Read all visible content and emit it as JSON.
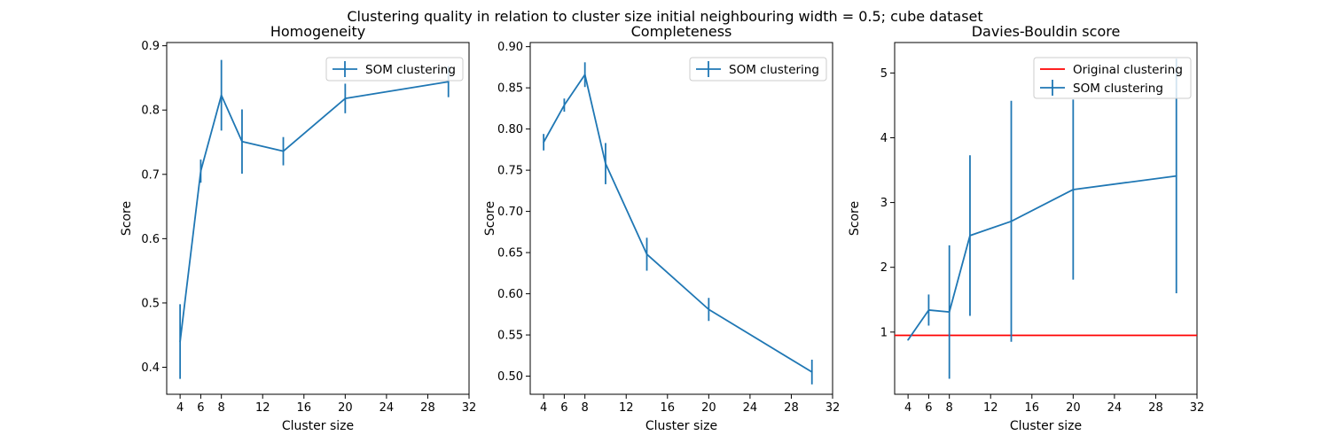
{
  "figure": {
    "title": "Clustering quality in relation to cluster size initial neighbouring width = 0.5; cube dataset"
  },
  "colors": {
    "series": "#1f77b4",
    "reference": "#ff0000",
    "axes": "#000000"
  },
  "chart_data": [
    {
      "type": "line",
      "title": "Homogeneity",
      "xlabel": "Cluster size",
      "ylabel": "Score",
      "xlim": [
        2.7,
        32.0
      ],
      "ylim": [
        0.358,
        0.905
      ],
      "xticks": [
        4,
        6,
        8,
        12,
        16,
        20,
        24,
        28,
        32
      ],
      "yticks": [
        0.4,
        0.5,
        0.6,
        0.7,
        0.8,
        0.9
      ],
      "ytick_labels": [
        "0.4",
        "0.5",
        "0.6",
        "0.7",
        "0.8",
        "0.9"
      ],
      "legend_position": "upper-right",
      "series": [
        {
          "name": "SOM clustering",
          "kind": "errorbar",
          "x": [
            4,
            6,
            8,
            10,
            14,
            20,
            30
          ],
          "y": [
            0.44,
            0.705,
            0.823,
            0.751,
            0.736,
            0.818,
            0.844
          ],
          "yerr": [
            0.058,
            0.018,
            0.055,
            0.05,
            0.022,
            0.023,
            0.024
          ]
        }
      ]
    },
    {
      "type": "line",
      "title": "Completeness",
      "xlabel": "Cluster size",
      "ylabel": "Score",
      "xlim": [
        2.7,
        32.0
      ],
      "ylim": [
        0.478,
        0.905
      ],
      "xticks": [
        4,
        6,
        8,
        12,
        16,
        20,
        24,
        28,
        32
      ],
      "yticks": [
        0.5,
        0.55,
        0.6,
        0.65,
        0.7,
        0.75,
        0.8,
        0.85,
        0.9
      ],
      "ytick_labels": [
        "0.50",
        "0.55",
        "0.60",
        "0.65",
        "0.70",
        "0.75",
        "0.80",
        "0.85",
        "0.90"
      ],
      "legend_position": "upper-right",
      "series": [
        {
          "name": "SOM clustering",
          "kind": "errorbar",
          "x": [
            4,
            6,
            8,
            10,
            14,
            20,
            30
          ],
          "y": [
            0.784,
            0.829,
            0.866,
            0.758,
            0.648,
            0.581,
            0.505
          ],
          "yerr": [
            0.01,
            0.008,
            0.015,
            0.025,
            0.02,
            0.014,
            0.015
          ]
        }
      ]
    },
    {
      "type": "line",
      "title": "Davies-Bouldin score",
      "xlabel": "Cluster size",
      "ylabel": "Score",
      "xlim": [
        2.7,
        32.0
      ],
      "ylim": [
        0.04,
        5.47
      ],
      "xticks": [
        4,
        6,
        8,
        12,
        16,
        20,
        24,
        28,
        32
      ],
      "yticks": [
        1,
        2,
        3,
        4,
        5
      ],
      "ytick_labels": [
        "1",
        "2",
        "3",
        "4",
        "5"
      ],
      "legend_position": "upper-right",
      "series": [
        {
          "name": "Original clustering",
          "kind": "hline",
          "y": 0.95
        },
        {
          "name": "SOM clustering",
          "kind": "errorbar",
          "x": [
            4,
            6,
            8,
            10,
            14,
            20,
            30
          ],
          "y": [
            0.88,
            1.34,
            1.31,
            2.49,
            2.71,
            3.2,
            3.41
          ],
          "yerr": [
            0.0,
            0.24,
            1.03,
            1.24,
            1.86,
            1.39,
            1.81
          ]
        }
      ]
    }
  ]
}
